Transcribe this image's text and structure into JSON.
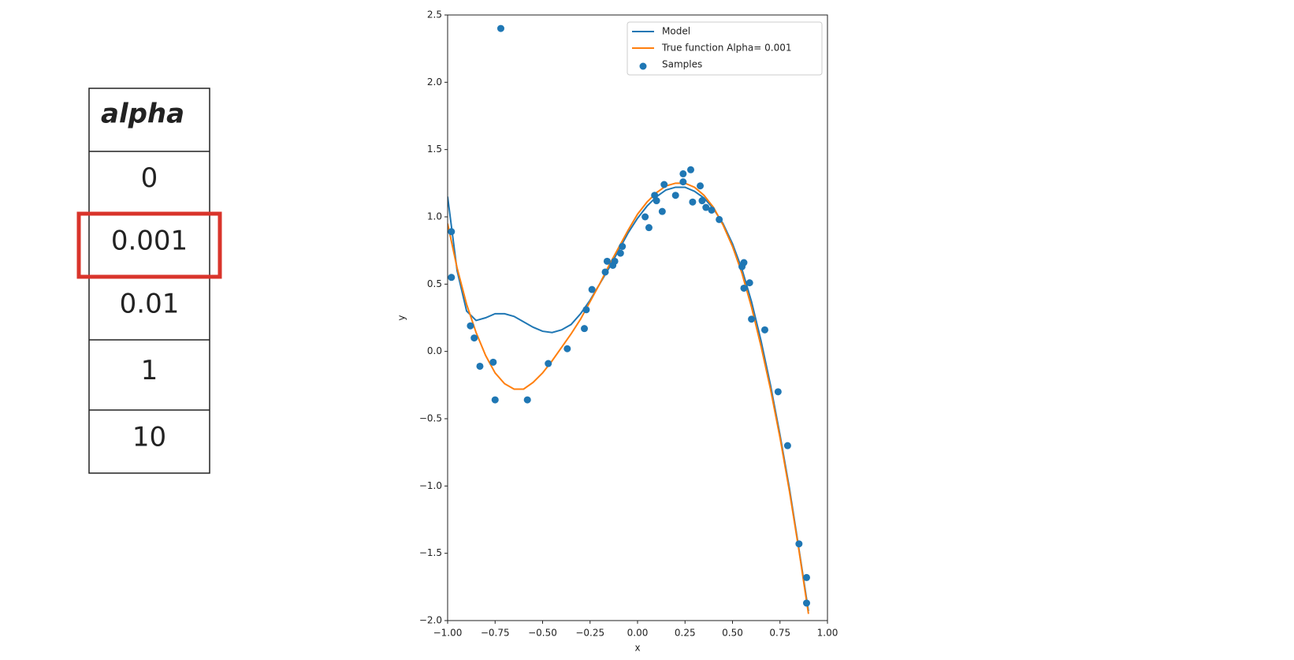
{
  "table": {
    "header": "alpha",
    "rows": [
      "0",
      "0.001",
      "0.01",
      "1",
      "10"
    ],
    "highlighted_row": 1
  },
  "chart_data": {
    "type": "line",
    "xlabel": "x",
    "ylabel": "y",
    "xlim": [
      -1,
      1
    ],
    "ylim": [
      -2,
      2.5
    ],
    "xticks": [
      {
        "value": -1,
        "label": "−1.00"
      },
      {
        "value": -0.75,
        "label": "−0.75"
      },
      {
        "value": -0.5,
        "label": "−0.50"
      },
      {
        "value": -0.25,
        "label": "−0.25"
      },
      {
        "value": 0,
        "label": "0.00"
      },
      {
        "value": 0.25,
        "label": "0.25"
      },
      {
        "value": 0.5,
        "label": "0.50"
      },
      {
        "value": 0.75,
        "label": "0.75"
      },
      {
        "value": 1,
        "label": "1.00"
      }
    ],
    "yticks": [
      {
        "value": -2,
        "label": "−2.0"
      },
      {
        "value": -1.5,
        "label": "−1.5"
      },
      {
        "value": -1,
        "label": "−1.0"
      },
      {
        "value": -0.5,
        "label": "−0.5"
      },
      {
        "value": 0,
        "label": "0.0"
      },
      0.5,
      {
        "value": 1,
        "label": "1.0"
      },
      1.5,
      {
        "value": 2,
        "label": "2.0"
      },
      2.5
    ],
    "legend": "upper right",
    "x": [
      -1,
      -0.95,
      -0.9,
      -0.85,
      -0.8,
      -0.75,
      -0.7,
      -0.65,
      -0.6,
      -0.55,
      -0.5,
      -0.45,
      -0.4,
      -0.35,
      -0.3,
      -0.25,
      -0.2,
      -0.15,
      -0.1,
      -0.05,
      0,
      0.05,
      0.1,
      0.15,
      0.2,
      0.25,
      0.3,
      0.35,
      0.4,
      0.45,
      0.5,
      0.55,
      0.6,
      0.65,
      0.7,
      0.75,
      0.8,
      0.85,
      0.9
    ],
    "series": [
      {
        "name": "Model",
        "color": "#1f77b4",
        "type": "line",
        "values": [
          1.15,
          0.6,
          0.3,
          0.23,
          0.25,
          0.28,
          0.28,
          0.26,
          0.22,
          0.18,
          0.15,
          0.14,
          0.16,
          0.2,
          0.28,
          0.38,
          0.5,
          0.62,
          0.75,
          0.88,
          0.99,
          1.08,
          1.15,
          1.2,
          1.22,
          1.22,
          1.19,
          1.14,
          1.06,
          0.95,
          0.8,
          0.61,
          0.37,
          0.08,
          -0.25,
          -0.62,
          -1.02,
          -1.47,
          -1.93
        ]
      },
      {
        "name": "True function Alpha= 0.001",
        "color": "#ff7f0e",
        "type": "line",
        "values": [
          0.95,
          0.62,
          0.35,
          0.14,
          -0.03,
          -0.16,
          -0.24,
          -0.28,
          -0.28,
          -0.23,
          -0.16,
          -0.07,
          0.03,
          0.13,
          0.24,
          0.37,
          0.5,
          0.64,
          0.77,
          0.9,
          1.02,
          1.11,
          1.18,
          1.23,
          1.25,
          1.25,
          1.22,
          1.16,
          1.07,
          0.94,
          0.78,
          0.58,
          0.33,
          0.04,
          -0.28,
          -0.64,
          -1.04,
          -1.48,
          -1.95
        ]
      },
      {
        "name": "Samples",
        "color": "#1f77b4",
        "type": "scatter",
        "x": [
          -0.72,
          -0.98,
          -0.98,
          -0.88,
          -0.86,
          -0.83,
          -0.76,
          -0.75,
          -0.58,
          -0.47,
          -0.37,
          -0.28,
          -0.27,
          -0.24,
          -0.17,
          -0.16,
          -0.13,
          -0.12,
          -0.09,
          -0.08,
          0.04,
          0.06,
          0.09,
          0.1,
          0.13,
          0.14,
          0.2,
          0.24,
          0.24,
          0.28,
          0.29,
          0.33,
          0.34,
          0.36,
          0.39,
          0.43,
          0.55,
          0.56,
          0.56,
          0.59,
          0.6,
          0.67,
          0.74,
          0.79,
          0.85,
          0.89,
          0.89
        ],
        "values": [
          2.4,
          0.89,
          0.55,
          0.19,
          0.1,
          -0.11,
          -0.08,
          -0.36,
          -0.36,
          -0.09,
          0.02,
          0.17,
          0.31,
          0.46,
          0.59,
          0.67,
          0.64,
          0.67,
          0.73,
          0.78,
          1.0,
          0.92,
          1.16,
          1.12,
          1.04,
          1.24,
          1.16,
          1.26,
          1.32,
          1.35,
          1.11,
          1.23,
          1.12,
          1.07,
          1.05,
          0.98,
          0.63,
          0.66,
          0.47,
          0.51,
          0.24,
          0.16,
          -0.3,
          -0.7,
          -1.43,
          -1.68,
          -1.87
        ]
      }
    ]
  }
}
